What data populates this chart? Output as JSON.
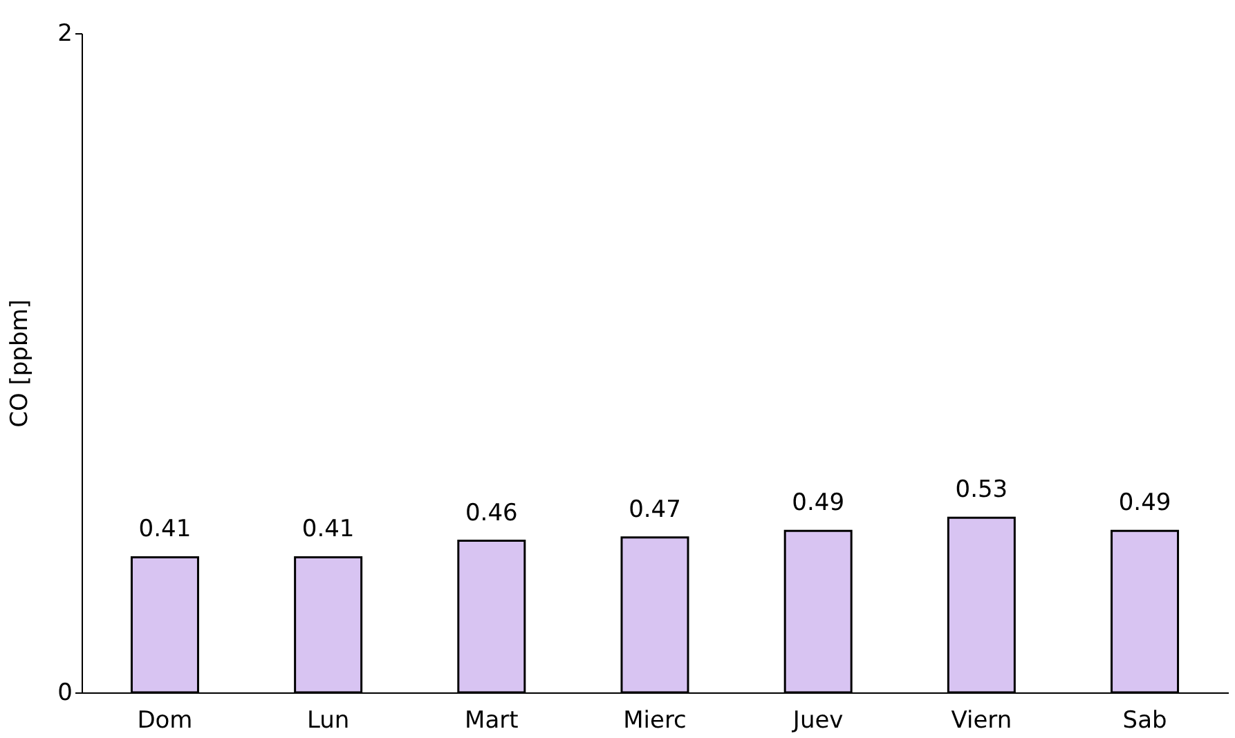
{
  "chart_data": {
    "type": "bar",
    "ylabel": "CO [ppbm]",
    "categories": [
      "Dom",
      "Lun",
      "Mart",
      "Mierc",
      "Juev",
      "Viern",
      "Sab"
    ],
    "values": [
      0.41,
      0.41,
      0.46,
      0.47,
      0.49,
      0.53,
      0.49
    ],
    "color": "#d8c4f2",
    "ylim": [
      0,
      2
    ],
    "yticks": [
      0,
      2
    ],
    "grid": false,
    "data_labels": true
  }
}
